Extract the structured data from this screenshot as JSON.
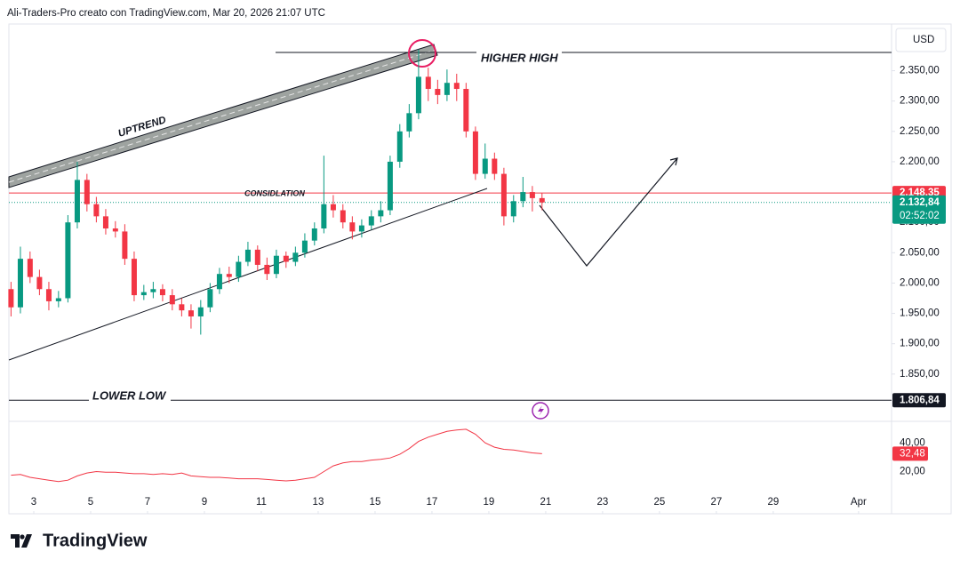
{
  "header": {
    "text": "Ali-Traders-Pro creato con TradingView.com, Mar 20, 2026 21:07 UTC"
  },
  "logo": {
    "text": "TradingView"
  },
  "chart_data": {
    "type": "candlestick",
    "currency": "USD",
    "x": [
      2.2,
      2.53,
      2.87,
      3.2,
      3.53,
      3.87,
      4.2,
      4.53,
      4.87,
      5.2,
      5.53,
      5.87,
      6.2,
      6.53,
      6.87,
      7.2,
      7.53,
      7.87,
      8.2,
      8.53,
      8.87,
      9.2,
      9.53,
      9.87,
      10.2,
      10.53,
      10.87,
      11.2,
      11.53,
      11.87,
      12.2,
      12.53,
      12.87,
      13.2,
      13.53,
      13.87,
      14.2,
      14.53,
      14.87,
      15.2,
      15.53,
      15.87,
      16.2,
      16.53,
      16.87,
      17.2,
      17.53,
      17.87,
      18.2,
      18.53,
      18.87,
      19.2,
      19.53,
      19.87,
      20.2,
      20.53,
      20.87
    ],
    "open": [
      1990,
      1960,
      2040,
      2010,
      1990,
      1970,
      1975,
      2100,
      2170,
      2130,
      2110,
      2090,
      2085,
      2040,
      1980,
      1985,
      1990,
      1980,
      1965,
      1955,
      1945,
      1960,
      1990,
      2015,
      2010,
      2035,
      2055,
      2030,
      2015,
      2045,
      2035,
      2050,
      2070,
      2090,
      2130,
      2120,
      2100,
      2085,
      2095,
      2110,
      2120,
      2200,
      2250,
      2280,
      2340,
      2320,
      2310,
      2330,
      2320,
      2250,
      2180,
      2205,
      2180,
      2110,
      2135,
      2150,
      2140
    ],
    "high": [
      2002,
      2060,
      2052,
      2022,
      2002,
      1987,
      2112,
      2200,
      2180,
      2142,
      2122,
      2102,
      2097,
      2052,
      1997,
      2002,
      1998,
      1990,
      1975,
      1965,
      1972,
      2000,
      2025,
      2027,
      2045,
      2068,
      2062,
      2042,
      2055,
      2052,
      2060,
      2082,
      2100,
      2210,
      2145,
      2130,
      2110,
      2105,
      2120,
      2135,
      2210,
      2262,
      2295,
      2385,
      2355,
      2335,
      2352,
      2345,
      2330,
      2258,
      2230,
      2215,
      2190,
      2145,
      2175,
      2160,
      2148
    ],
    "low": [
      1945,
      1950,
      2000,
      1980,
      1955,
      1960,
      1968,
      2090,
      2118,
      2100,
      2080,
      2075,
      2030,
      1970,
      1972,
      1975,
      1970,
      1955,
      1945,
      1925,
      1915,
      1952,
      1982,
      2000,
      2002,
      2028,
      2020,
      2005,
      2008,
      2025,
      2028,
      2042,
      2062,
      2082,
      2108,
      2090,
      2072,
      2075,
      2088,
      2100,
      2112,
      2190,
      2240,
      2270,
      2300,
      2295,
      2300,
      2300,
      2240,
      2170,
      2172,
      2170,
      2095,
      2100,
      2125,
      2118,
      2120
    ],
    "close": [
      1960,
      2040,
      2010,
      1990,
      1970,
      1975,
      2100,
      2170,
      2130,
      2110,
      2090,
      2085,
      2040,
      1980,
      1985,
      1990,
      1980,
      1965,
      1955,
      1945,
      1960,
      1990,
      2015,
      2010,
      2035,
      2055,
      2030,
      2015,
      2045,
      2035,
      2050,
      2070,
      2090,
      2130,
      2120,
      2100,
      2085,
      2095,
      2110,
      2120,
      2200,
      2250,
      2280,
      2340,
      2320,
      2310,
      2330,
      2320,
      2250,
      2180,
      2205,
      2180,
      2110,
      2135,
      2150,
      2140,
      2132.84
    ],
    "up_color": "#089981",
    "down_color": "#f23645",
    "xlim": [
      2.125,
      33.16
    ],
    "xticks": [
      3,
      5,
      7,
      9,
      11,
      13,
      15,
      17,
      19,
      21,
      23,
      25,
      27,
      29,
      {
        "value": 32,
        "label": "Apr"
      }
    ],
    "ylim": [
      1775,
      2427
    ],
    "yticks": [
      {
        "value": 1850,
        "label": "1.850,00"
      },
      {
        "value": 1900,
        "label": "1.900,00"
      },
      {
        "value": 1950,
        "label": "1.950,00"
      },
      {
        "value": 2000,
        "label": "2.000,00"
      },
      {
        "value": 2050,
        "label": "2.050,00"
      },
      {
        "value": 2100,
        "label": "2.100,00"
      },
      {
        "value": 2150,
        "label": "2.150,00"
      },
      {
        "value": 2200,
        "label": "2.200,00"
      },
      {
        "value": 2250,
        "label": "2.250,00"
      },
      {
        "value": 2300,
        "label": "2.300,00"
      },
      {
        "value": 2350,
        "label": "2.350,00"
      }
    ],
    "price_lines": [
      {
        "value": 2148.35,
        "label": "2.148,35",
        "color": "#f23645",
        "style": "solid"
      },
      {
        "value": 2132.84,
        "label": "2.132,84",
        "color": "#089981",
        "style": "dotted",
        "countdown": "02:52:02"
      },
      {
        "value": 1806.84,
        "label": "1.806,84",
        "color": "#131722",
        "style": "solid"
      }
    ],
    "annotations": [
      "UPTREND",
      "HIGHER HIGH",
      "CONSIDLATION",
      "LOWER LOW"
    ],
    "rsi": {
      "color": "#f23645",
      "values": [
        17.5,
        18,
        16,
        15,
        14,
        13,
        14,
        17,
        19,
        20,
        19.5,
        19.5,
        19,
        18.5,
        18.5,
        18,
        18.5,
        18,
        19,
        17,
        16.5,
        16,
        16,
        15.5,
        15,
        15,
        15,
        14.5,
        14,
        13.5,
        14,
        15,
        16,
        20,
        24,
        26,
        27,
        27,
        28,
        28.5,
        29.5,
        32,
        36,
        41,
        44,
        46,
        48,
        49,
        49.5,
        46,
        40,
        37,
        35.5,
        35,
        34,
        33,
        32.48
      ],
      "last_label": "32,48",
      "ylim": [
        -9.4,
        55
      ],
      "yticks": [
        {
          "value": 20,
          "label": "20,00"
        },
        {
          "value": 40,
          "label": "40,00"
        }
      ]
    }
  }
}
